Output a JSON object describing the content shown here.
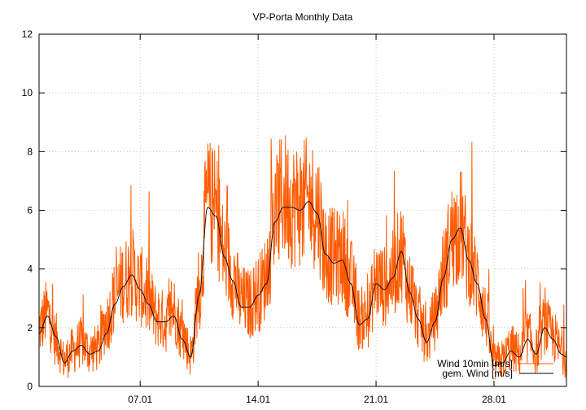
{
  "chart_data": {
    "type": "line",
    "title": "VP-Porta Monthly Data",
    "xlabel": "",
    "ylabel": "",
    "xlim": [
      0,
      31.3
    ],
    "ylim": [
      0,
      12
    ],
    "yticks": [
      0,
      2,
      4,
      6,
      8,
      10,
      12
    ],
    "xticks": [
      {
        "label": "07.01",
        "value": 6.0
      },
      {
        "label": "14.01",
        "value": 13.0
      },
      {
        "label": "21.01",
        "value": 20.0
      },
      {
        "label": "28.01",
        "value": 27.0
      }
    ],
    "grid": true,
    "legend_position": "bottom-right",
    "series": [
      {
        "name": "Wind 10min [m/s]",
        "color": "#ff5a00",
        "style": "noisy",
        "x": [
          0,
          0.5,
          1,
          1.5,
          2,
          2.5,
          3,
          3.5,
          4,
          4.5,
          5,
          5.5,
          6,
          6.5,
          7,
          7.5,
          8,
          8.5,
          9,
          9.5,
          10,
          10.5,
          11,
          11.5,
          12,
          12.5,
          13,
          13.5,
          14,
          14.5,
          15,
          15.5,
          16,
          16.5,
          17,
          17.5,
          18,
          18.5,
          19,
          19.5,
          20,
          20.5,
          21,
          21.5,
          22,
          22.5,
          23,
          23.5,
          24,
          24.5,
          25,
          25.5,
          26,
          26.5,
          27,
          27.5,
          28,
          28.5,
          29,
          29.5,
          30,
          30.5,
          31,
          31.3
        ],
        "values": [
          2.0,
          2.5,
          1.6,
          0.9,
          1.2,
          1.5,
          1.2,
          1.3,
          2.2,
          3.0,
          3.6,
          3.9,
          3.4,
          2.9,
          2.4,
          2.2,
          2.6,
          1.8,
          1.1,
          3.2,
          6.3,
          6.0,
          4.5,
          3.8,
          2.9,
          2.8,
          3.2,
          3.7,
          5.8,
          6.5,
          6.2,
          6.2,
          6.3,
          6.1,
          4.6,
          4.4,
          4.4,
          3.6,
          2.3,
          2.4,
          3.6,
          3.4,
          3.8,
          4.6,
          3.3,
          2.4,
          1.6,
          2.3,
          3.9,
          5.1,
          5.5,
          4.4,
          3.6,
          2.4,
          0.8,
          0.9,
          1.3,
          1.1,
          1.7,
          1.2,
          2.1,
          1.7,
          1.2,
          1.0
        ]
      },
      {
        "name": "gem. Wind [m/s]",
        "color": "#000000",
        "style": "smooth",
        "x": [
          0,
          0.5,
          1,
          1.5,
          2,
          2.5,
          3,
          3.5,
          4,
          4.5,
          5,
          5.5,
          6,
          6.5,
          7,
          7.5,
          8,
          8.5,
          9,
          9.5,
          10,
          10.5,
          11,
          11.5,
          12,
          12.5,
          13,
          13.5,
          14,
          14.5,
          15,
          15.5,
          16,
          16.5,
          17,
          17.5,
          18,
          18.5,
          19,
          19.5,
          20,
          20.5,
          21,
          21.5,
          22,
          22.5,
          23,
          23.5,
          24,
          24.5,
          25,
          25.5,
          26,
          26.5,
          27,
          27.5,
          28,
          28.5,
          29,
          29.5,
          30,
          30.5,
          31,
          31.3
        ],
        "values": [
          1.8,
          2.4,
          1.7,
          0.8,
          1.2,
          1.4,
          1.1,
          1.2,
          1.8,
          2.8,
          3.4,
          3.8,
          3.3,
          2.8,
          2.2,
          2.2,
          2.4,
          1.6,
          1.0,
          3.1,
          6.1,
          5.8,
          4.4,
          3.6,
          2.7,
          2.7,
          3.1,
          3.5,
          5.6,
          6.1,
          6.1,
          6.0,
          6.3,
          5.9,
          4.5,
          4.2,
          4.3,
          3.5,
          2.1,
          2.3,
          3.5,
          3.3,
          3.7,
          4.6,
          3.2,
          2.3,
          1.5,
          2.2,
          3.7,
          5.0,
          5.4,
          4.3,
          3.5,
          2.3,
          0.7,
          0.8,
          1.2,
          1.0,
          1.6,
          1.1,
          2.0,
          1.6,
          1.1,
          1.0
        ]
      }
    ]
  }
}
